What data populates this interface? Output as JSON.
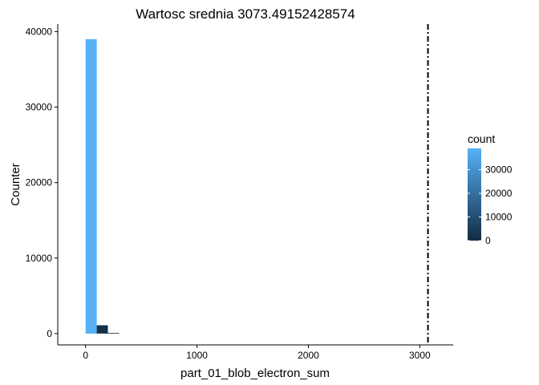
{
  "chart_data": {
    "type": "bar",
    "subtype": "histogram",
    "title": "Wartosc srednia 3073.49152428574",
    "xlabel": "part_01_blob_electron_sum",
    "ylabel": "Counter",
    "xlim": [
      -250,
      3300
    ],
    "ylim": [
      -1500,
      41000
    ],
    "x_ticks": [
      0,
      1000,
      2000,
      3000
    ],
    "x_tick_labels": [
      "0",
      "1000",
      "2000",
      "3000"
    ],
    "y_ticks": [
      0,
      10000,
      20000,
      30000,
      40000
    ],
    "y_tick_labels": [
      "0",
      "10000",
      "20000",
      "30000",
      "40000"
    ],
    "bin_width": 100,
    "bins": [
      {
        "x": 0,
        "count": 39000
      },
      {
        "x": 100,
        "count": 1100
      },
      {
        "x": 200,
        "count": 80
      }
    ],
    "mean_line": {
      "x": 3073.49152428574,
      "style": "dashed"
    },
    "grid": false,
    "legend": {
      "title": "count",
      "position": "right",
      "range": [
        0,
        39000
      ],
      "ticks": [
        0,
        10000,
        20000,
        30000
      ],
      "tick_labels": [
        "0",
        "10000",
        "20000",
        "30000"
      ],
      "color_low": "#132b43",
      "color_high": "#56b1f7"
    }
  }
}
